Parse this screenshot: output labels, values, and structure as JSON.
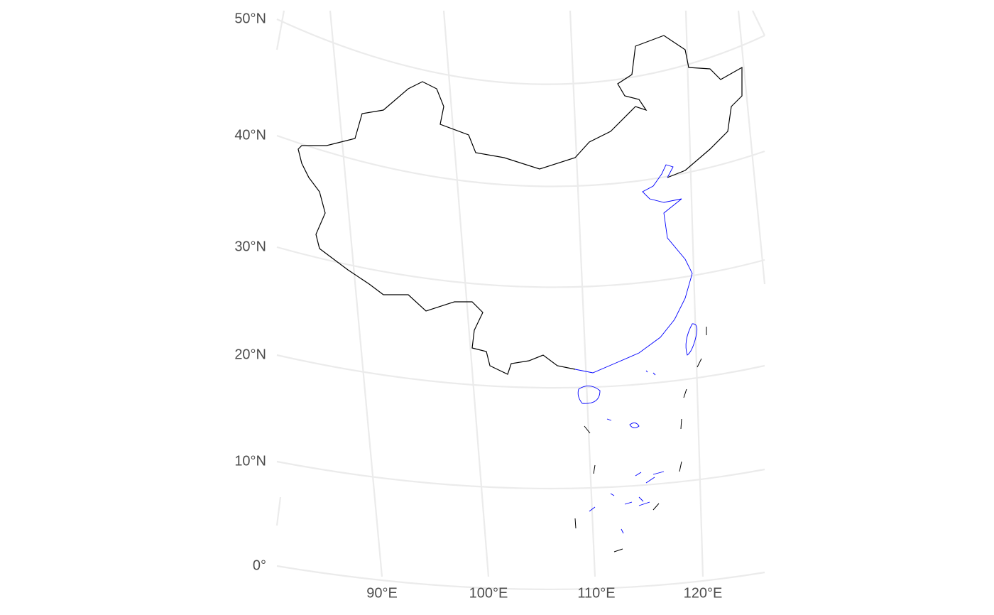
{
  "axes": {
    "latitude": [
      "50°N",
      "40°N",
      "30°N",
      "20°N",
      "10°N",
      "0°"
    ],
    "longitude": [
      "90°E",
      "100°E",
      "110°E",
      "120°E"
    ]
  }
}
